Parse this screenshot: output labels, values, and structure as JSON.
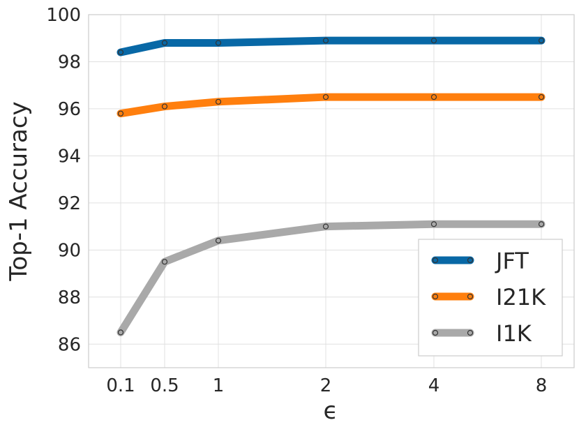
{
  "chart_data": {
    "type": "line",
    "title": "",
    "xlabel": "ϵ",
    "ylabel": "Top-1 Accuracy",
    "x": [
      "0.1",
      "0.5",
      "1",
      "2",
      "4",
      "8"
    ],
    "ylim": [
      85,
      100
    ],
    "yticks": [
      "86",
      "88",
      "90",
      "92",
      "94",
      "96",
      "98",
      "100"
    ],
    "grid": true,
    "legend_position": "bottom-right",
    "series": [
      {
        "name": "JFT",
        "color": "#0868a6",
        "values": [
          98.4,
          98.8,
          98.8,
          98.9,
          98.9,
          98.9
        ]
      },
      {
        "name": "I21K",
        "color": "#ff7f0e",
        "values": [
          95.8,
          96.1,
          96.3,
          96.5,
          96.5,
          96.5
        ]
      },
      {
        "name": "I1K",
        "color": "#a9a9a9",
        "values": [
          86.5,
          89.5,
          90.4,
          91.0,
          91.1,
          91.1
        ]
      }
    ]
  }
}
